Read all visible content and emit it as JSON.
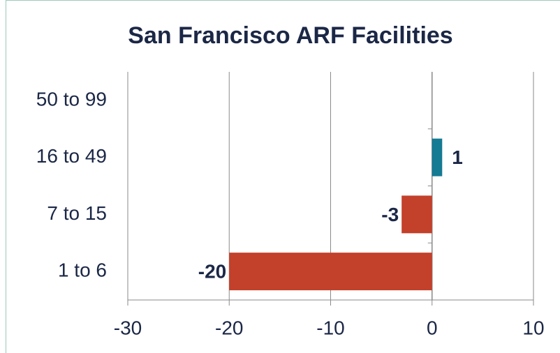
{
  "chart_data": {
    "type": "hbar",
    "title": "San Francisco ARF Facilities",
    "categories": [
      "50 to 99",
      "16 to 49",
      "7 to 15",
      "1 to 6"
    ],
    "values": [
      null,
      1,
      -3,
      -20
    ],
    "positive_color": "#157a93",
    "negative_color": "#c3402b",
    "xlim": [
      -30,
      10
    ],
    "xticks": [
      -30,
      -20,
      -10,
      0,
      10
    ],
    "grid": true
  }
}
